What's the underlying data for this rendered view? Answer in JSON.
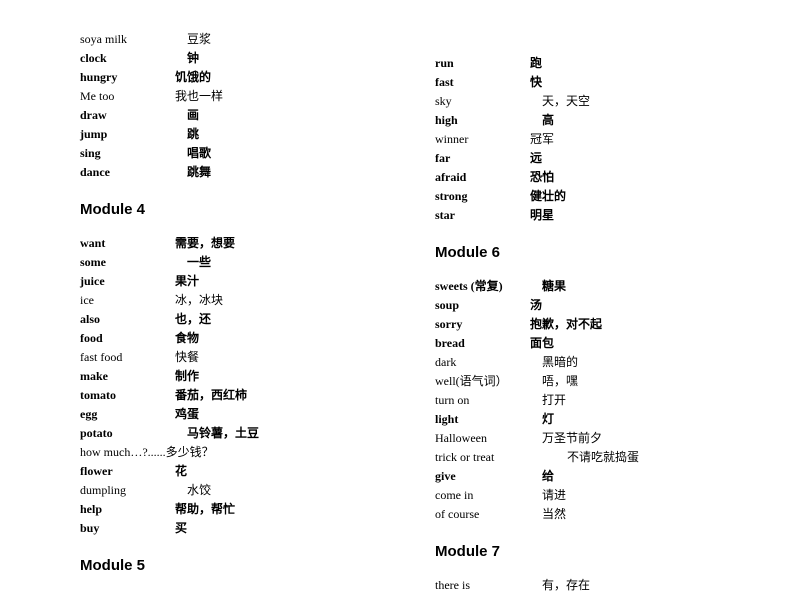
{
  "left": {
    "pre": [
      {
        "en": "soya milk",
        "zh": "豆浆",
        "bold": false,
        "indent": true
      },
      {
        "en": "clock",
        "zh": "钟",
        "bold": true,
        "indent": true
      },
      {
        "en": "hungry",
        "zh": "饥饿的",
        "bold": true,
        "indent": false
      },
      {
        "en": "Me too",
        "zh": "我也一样",
        "bold": false,
        "indent": false
      },
      {
        "en": "draw",
        "zh": "画",
        "bold": true,
        "indent": true
      },
      {
        "en": "jump",
        "zh": "跳",
        "bold": true,
        "indent": true
      },
      {
        "en": "sing",
        "zh": "唱歌",
        "bold": true,
        "indent": true
      },
      {
        "en": "dance",
        "zh": "跳舞",
        "bold": true,
        "indent": true
      }
    ],
    "mod4_title": "Module 4",
    "mod4": [
      {
        "en": "want",
        "zh": "需要，想要",
        "bold": true,
        "indent": false
      },
      {
        "en": "some",
        "zh": "一些",
        "bold": true,
        "indent": true
      },
      {
        "en": "juice",
        "zh": "果汁",
        "bold": true,
        "indent": false
      },
      {
        "en": "ice",
        "zh": "冰，冰块",
        "bold": false,
        "indent": false
      },
      {
        "en": "also",
        "zh": "也，还",
        "bold": true,
        "indent": false
      },
      {
        "en": "food",
        "zh": "食物",
        "bold": true,
        "indent": false
      },
      {
        "en": "fast food",
        "zh": "快餐",
        "bold": false,
        "indent": false
      },
      {
        "en": "make",
        "zh": "制作",
        "bold": true,
        "indent": false
      },
      {
        "en": "tomato",
        "zh": "番茄，西红柿",
        "bold": true,
        "indent": false
      },
      {
        "en": "egg",
        "zh": "鸡蛋",
        "bold": true,
        "indent": false
      },
      {
        "en": "potato",
        "zh": "马铃薯，土豆",
        "bold": true,
        "indent": true
      },
      {
        "en": "how much…?......多少钱？",
        "zh": "",
        "bold": false,
        "indent": false,
        "full": true
      },
      {
        "en": "flower",
        "zh": "花",
        "bold": true,
        "indent": false
      },
      {
        "en": "dumpling",
        "zh": "水饺",
        "bold": false,
        "indent": true
      },
      {
        "en": "help",
        "zh": "帮助，帮忙",
        "bold": true,
        "indent": false
      },
      {
        "en": "buy",
        "zh": "买",
        "bold": true,
        "indent": false
      }
    ],
    "mod5_title": "Module 5"
  },
  "right": {
    "pre": [
      {
        "en": "run",
        "zh": "跑",
        "bold": true,
        "indent": false
      },
      {
        "en": "fast",
        "zh": "快",
        "bold": true,
        "indent": false
      },
      {
        "en": "sky",
        "zh": "天，天空",
        "bold": false,
        "indent": true
      },
      {
        "en": "high",
        "zh": "高",
        "bold": true,
        "indent": true
      },
      {
        "en": "winner",
        "zh": "冠军",
        "bold": false,
        "indent": false
      },
      {
        "en": "far",
        "zh": "远",
        "bold": true,
        "indent": false
      },
      {
        "en": "afraid",
        "zh": "恐怕",
        "bold": true,
        "indent": false
      },
      {
        "en": "strong",
        "zh": "健壮的",
        "bold": true,
        "indent": false
      },
      {
        "en": "star",
        "zh": "明星",
        "bold": true,
        "indent": false
      }
    ],
    "mod6_title": "Module 6",
    "mod6": [
      {
        "en": "sweets (常复)",
        "zh": "糖果",
        "bold": true,
        "indent": true
      },
      {
        "en": "soup",
        "zh": "汤",
        "bold": true,
        "indent": false
      },
      {
        "en": "sorry",
        "zh": "抱歉，对不起",
        "bold": true,
        "indent": false
      },
      {
        "en": "bread",
        "zh": "面包",
        "bold": true,
        "indent": false
      },
      {
        "en": "dark",
        "zh": "黑暗的",
        "bold": false,
        "indent": true
      },
      {
        "en": "well(语气词）",
        "zh": "唔，嘿",
        "bold": false,
        "indent": true
      },
      {
        "en": "turn on",
        "zh": "打开",
        "bold": false,
        "indent": true
      },
      {
        "en": "light",
        "zh": "灯",
        "bold": true,
        "indent": true
      },
      {
        "en": "Halloween",
        "zh": "万圣节前夕",
        "bold": false,
        "indent": true
      },
      {
        "en": "trick or treat",
        "zh": "不请吃就捣蛋",
        "bold": false,
        "indent": true,
        "wide": true
      },
      {
        "en": "give",
        "zh": "给",
        "bold": true,
        "indent": true
      },
      {
        "en": "come in",
        "zh": "请进",
        "bold": false,
        "indent": true
      },
      {
        "en": "of course",
        "zh": "当然",
        "bold": false,
        "indent": true
      }
    ],
    "mod7_title": "Module 7",
    "mod7": [
      {
        "en": "there is",
        "zh": "有，存在",
        "bold": false,
        "indent": true
      }
    ]
  }
}
